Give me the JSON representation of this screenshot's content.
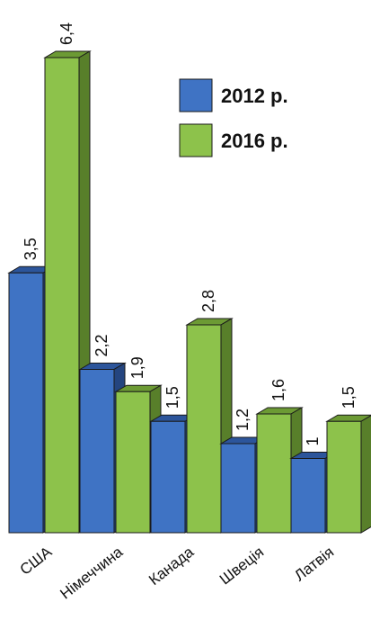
{
  "chart_data": {
    "type": "bar",
    "categories": [
      "США",
      "Німеччина",
      "Канада",
      "Швеція",
      "Латвія"
    ],
    "series": [
      {
        "name": "2012 р.",
        "values": [
          3.5,
          2.2,
          1.5,
          1.2,
          1.0
        ],
        "labels": [
          "3,5",
          "2,2",
          "1,5",
          "1,2",
          "1"
        ]
      },
      {
        "name": "2016 р.",
        "values": [
          6.4,
          1.9,
          2.8,
          1.6,
          1.5
        ],
        "labels": [
          "6,4",
          "1,9",
          "2,8",
          "1,6",
          "1,5"
        ]
      }
    ],
    "colors": {
      "s2012_front": "#3f73c4",
      "s2012_top": "#2c559b",
      "s2012_side": "#24457f",
      "s2016_front": "#8dc24b",
      "s2016_top": "#6c9a34",
      "s2016_side": "#587f2a"
    },
    "ylim": [
      0,
      6.6
    ],
    "grid": false,
    "legend_position": "top-right"
  }
}
